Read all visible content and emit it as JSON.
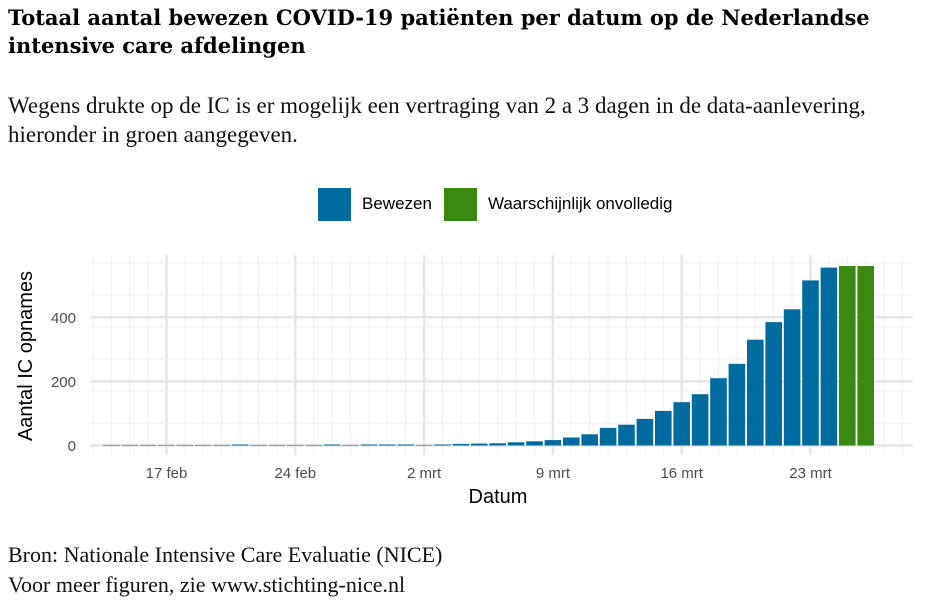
{
  "header": {
    "title": "Totaal aantal bewezen COVID-19 patiënten per datum op de Nederlandse intensive care afdelingen",
    "subtitle": "Wegens drukte op de IC is er mogelijk een vertraging van 2 a 3 dagen in de data-aanlevering, hieronder in groen aangegeven."
  },
  "legend": {
    "items": [
      {
        "label": "Bewezen",
        "color": "#006B9F"
      },
      {
        "label": "Waarschijnlijk onvolledig",
        "color": "#3A8A12"
      }
    ]
  },
  "caption": {
    "source": "Bron: Nationale Intensive Care Evaluatie (NICE)",
    "more": "Voor meer figuren, zie www.stichting-nice.nl"
  },
  "chart_data": {
    "type": "bar",
    "xlabel": "Datum",
    "ylabel": "Aantal IC opnames",
    "ylim": [
      0,
      580
    ],
    "y_ticks": [
      0,
      200,
      400
    ],
    "x_ticks": [
      {
        "day": "2020-02-17",
        "label": "17 feb"
      },
      {
        "day": "2020-02-24",
        "label": "24 feb"
      },
      {
        "day": "2020-03-02",
        "label": "2 mrt"
      },
      {
        "day": "2020-03-09",
        "label": "9 mrt"
      },
      {
        "day": "2020-03-16",
        "label": "16 mrt"
      },
      {
        "day": "2020-03-23",
        "label": "23 mrt"
      }
    ],
    "grid": true,
    "legend_position": "top",
    "series": [
      {
        "name": "Bewezen",
        "color": "#006B9F",
        "points": [
          {
            "x": "2020-02-14",
            "y": 0
          },
          {
            "x": "2020-02-15",
            "y": 0
          },
          {
            "x": "2020-02-16",
            "y": 0
          },
          {
            "x": "2020-02-17",
            "y": 0
          },
          {
            "x": "2020-02-18",
            "y": 0
          },
          {
            "x": "2020-02-19",
            "y": 0
          },
          {
            "x": "2020-02-20",
            "y": 0
          },
          {
            "x": "2020-02-21",
            "y": 1
          },
          {
            "x": "2020-02-22",
            "y": 0
          },
          {
            "x": "2020-02-23",
            "y": 0
          },
          {
            "x": "2020-02-24",
            "y": 0
          },
          {
            "x": "2020-02-25",
            "y": 0
          },
          {
            "x": "2020-02-26",
            "y": 1
          },
          {
            "x": "2020-02-27",
            "y": 0
          },
          {
            "x": "2020-02-28",
            "y": 1
          },
          {
            "x": "2020-02-29",
            "y": 1
          },
          {
            "x": "2020-03-01",
            "y": 1
          },
          {
            "x": "2020-03-02",
            "y": 0
          },
          {
            "x": "2020-03-03",
            "y": 3
          },
          {
            "x": "2020-03-04",
            "y": 5
          },
          {
            "x": "2020-03-05",
            "y": 6
          },
          {
            "x": "2020-03-06",
            "y": 7
          },
          {
            "x": "2020-03-07",
            "y": 10
          },
          {
            "x": "2020-03-08",
            "y": 13
          },
          {
            "x": "2020-03-09",
            "y": 17
          },
          {
            "x": "2020-03-10",
            "y": 25
          },
          {
            "x": "2020-03-11",
            "y": 35
          },
          {
            "x": "2020-03-12",
            "y": 55
          },
          {
            "x": "2020-03-13",
            "y": 65
          },
          {
            "x": "2020-03-14",
            "y": 83
          },
          {
            "x": "2020-03-15",
            "y": 108
          },
          {
            "x": "2020-03-16",
            "y": 135
          },
          {
            "x": "2020-03-17",
            "y": 160
          },
          {
            "x": "2020-03-18",
            "y": 210
          },
          {
            "x": "2020-03-19",
            "y": 255
          },
          {
            "x": "2020-03-20",
            "y": 330
          },
          {
            "x": "2020-03-21",
            "y": 385
          },
          {
            "x": "2020-03-22",
            "y": 425
          },
          {
            "x": "2020-03-23",
            "y": 515
          },
          {
            "x": "2020-03-24",
            "y": 555
          }
        ]
      },
      {
        "name": "Waarschijnlijk onvolledig",
        "color": "#3A8A12",
        "points": [
          {
            "x": "2020-03-25",
            "y": 560
          },
          {
            "x": "2020-03-26",
            "y": 560
          }
        ]
      }
    ]
  }
}
